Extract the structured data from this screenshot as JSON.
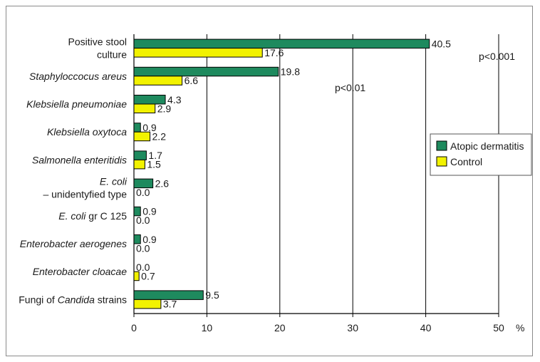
{
  "chart_data": {
    "type": "bar",
    "orientation": "horizontal",
    "categories": [
      {
        "lines": [
          [
            {
              "t": "Positive stool",
              "i": false
            }
          ],
          [
            {
              "t": "culture",
              "i": false
            }
          ]
        ]
      },
      {
        "lines": [
          [
            {
              "t": "Staphyloccocus areus",
              "i": true
            }
          ]
        ]
      },
      {
        "lines": [
          [
            {
              "t": "Klebsiella pneumoniae",
              "i": true
            }
          ]
        ]
      },
      {
        "lines": [
          [
            {
              "t": "Klebsiella oxytoca",
              "i": true
            }
          ]
        ]
      },
      {
        "lines": [
          [
            {
              "t": "Salmonella enteritidis",
              "i": true
            }
          ]
        ]
      },
      {
        "lines": [
          [
            {
              "t": "E. coli",
              "i": true
            }
          ],
          [
            {
              "t": "– unidentyfied type",
              "i": false
            }
          ]
        ]
      },
      {
        "lines": [
          [
            {
              "t": "E. coli",
              "i": true
            },
            {
              "t": " gr C 125",
              "i": false
            }
          ]
        ]
      },
      {
        "lines": [
          [
            {
              "t": "Enterobacter aerogenes",
              "i": true
            }
          ]
        ]
      },
      {
        "lines": [
          [
            {
              "t": "Enterobacter cloacae",
              "i": true
            }
          ]
        ]
      },
      {
        "lines": [
          [
            {
              "t": "Fungi of ",
              "i": false
            },
            {
              "t": "Candida",
              "i": true
            },
            {
              "t": " strains",
              "i": false
            }
          ]
        ]
      }
    ],
    "series": [
      {
        "name": "Atopic dermatitis",
        "color": "#1e8a5e",
        "values": [
          40.5,
          19.8,
          4.3,
          0.9,
          1.7,
          2.6,
          0.9,
          0.9,
          0.0,
          9.5
        ],
        "labels": [
          "40.5",
          "19.8",
          "4.3",
          "0.9",
          "1.7",
          "2.6",
          "0.9",
          "0.9",
          "0.0",
          "9.5"
        ]
      },
      {
        "name": "Control",
        "color": "#f2f200",
        "values": [
          17.6,
          6.6,
          2.9,
          2.2,
          1.5,
          0.0,
          0.0,
          0.0,
          0.7,
          3.7
        ],
        "labels": [
          "17.6",
          "6.6",
          "2.9",
          "2.2",
          "1.5",
          "0.0",
          "0.0",
          "0.0",
          "0.7",
          "3.7"
        ]
      }
    ],
    "xlim": [
      0,
      50
    ],
    "xticks": [
      "0",
      "10",
      "20",
      "30",
      "40",
      "50"
    ],
    "xunit": "%",
    "grid": "vertical",
    "legend_position": "right",
    "annotations": [
      {
        "text": "p<0.001",
        "category_index": 0
      },
      {
        "text": "p<0.01",
        "category_index": 1
      }
    ]
  }
}
